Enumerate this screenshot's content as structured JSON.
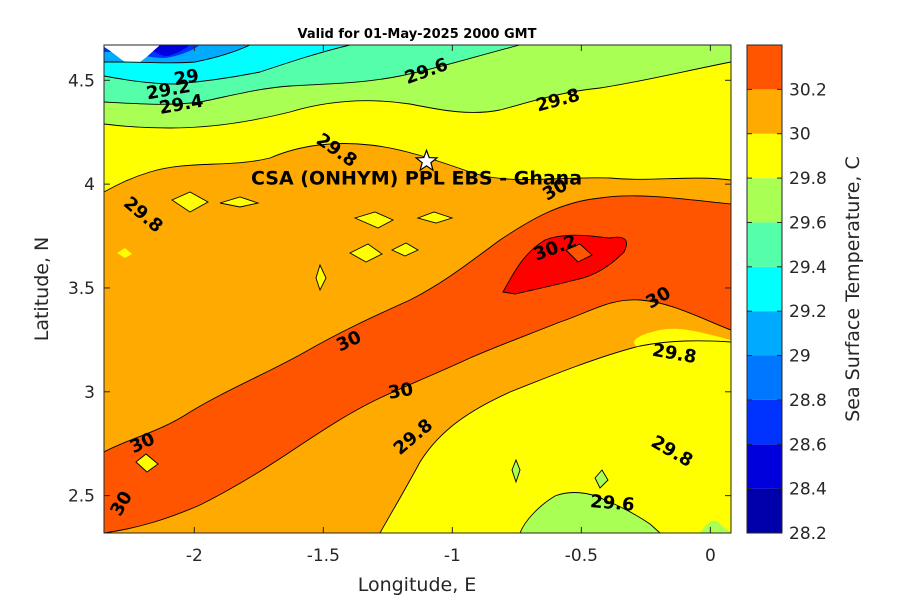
{
  "chart_data": {
    "type": "contour",
    "title": "Valid for 01-May-2025 2000 GMT",
    "xlabel": "Longitude, E",
    "ylabel": "Latitude, N",
    "xlim": [
      -2.35,
      0.08
    ],
    "ylim": [
      2.32,
      4.67
    ],
    "xticks": [
      "-2",
      "-1.5",
      "-1",
      "-0.5",
      "0"
    ],
    "yticks": [
      "2.5",
      "3",
      "3.5",
      "4",
      "4.5"
    ],
    "colorbar": {
      "label": "Sea Surface Temperature, C",
      "range": [
        28.2,
        30.4
      ],
      "levels": [
        28.2,
        28.4,
        28.6,
        28.8,
        29.0,
        29.2,
        29.4,
        29.6,
        29.8,
        30.0,
        30.2,
        30.4
      ],
      "tick_labels": [
        "28.2",
        "28.4",
        "28.6",
        "28.8",
        "29",
        "29.2",
        "29.4",
        "29.6",
        "29.8",
        "30",
        "30.2"
      ],
      "colors": [
        "#0000aa",
        "#0000dd",
        "#0033ff",
        "#0077ff",
        "#00aaff",
        "#00ffff",
        "#55ffaa",
        "#aaff55",
        "#ffff00",
        "#ffaa00",
        "#ff5500",
        "#ff0000"
      ]
    },
    "contour_labels": [
      {
        "text": "29",
        "lon": -2.03,
        "lat": 4.51,
        "angle": -10
      },
      {
        "text": "29.2",
        "lon": -2.1,
        "lat": 4.45,
        "angle": -10
      },
      {
        "text": "29.4",
        "lon": -2.05,
        "lat": 4.38,
        "angle": -10
      },
      {
        "text": "29.6",
        "lon": -1.1,
        "lat": 4.54,
        "angle": -20
      },
      {
        "text": "29.8",
        "lon": -0.59,
        "lat": 4.4,
        "angle": -15
      },
      {
        "text": "29.8",
        "lon": -1.45,
        "lat": 4.16,
        "angle": 35
      },
      {
        "text": "29.8",
        "lon": -2.2,
        "lat": 3.85,
        "angle": 40
      },
      {
        "text": "30",
        "lon": -0.6,
        "lat": 3.97,
        "angle": -30
      },
      {
        "text": "30.2",
        "lon": -0.6,
        "lat": 3.69,
        "angle": -20
      },
      {
        "text": "30",
        "lon": -0.2,
        "lat": 3.45,
        "angle": -30
      },
      {
        "text": "30",
        "lon": -1.4,
        "lat": 3.24,
        "angle": -25
      },
      {
        "text": "29.8",
        "lon": -0.14,
        "lat": 3.18,
        "angle": 10
      },
      {
        "text": "30",
        "lon": -1.2,
        "lat": 3.0,
        "angle": -10
      },
      {
        "text": "29.8",
        "lon": -1.15,
        "lat": 2.78,
        "angle": -40
      },
      {
        "text": "30",
        "lon": -2.2,
        "lat": 2.75,
        "angle": -25
      },
      {
        "text": "29.8",
        "lon": -0.15,
        "lat": 2.71,
        "angle": 30
      },
      {
        "text": "29.6",
        "lon": -0.38,
        "lat": 2.46,
        "angle": 5
      },
      {
        "text": "30",
        "lon": -2.28,
        "lat": 2.46,
        "angle": -60
      }
    ],
    "site": {
      "label": "CSA (ONHYM) PPL EBS  - Ghana",
      "lon": -1.1,
      "lat": 4.11
    }
  }
}
